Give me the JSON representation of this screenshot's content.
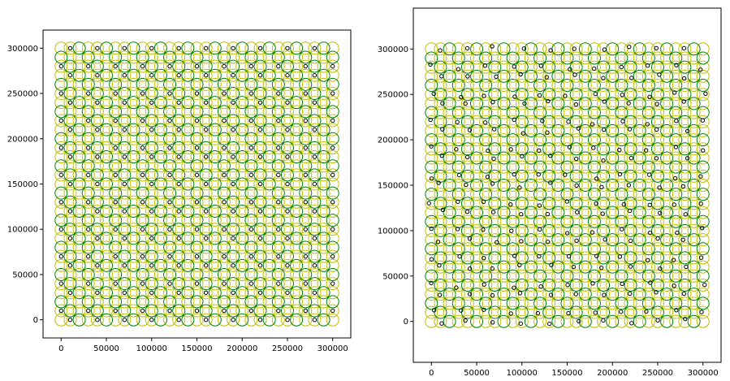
{
  "chart_data": [
    {
      "type": "scatter",
      "title": "",
      "xlabel": "",
      "ylabel": "",
      "xlim": [
        -20000,
        320000
      ],
      "ylim": [
        -20000,
        320000
      ],
      "xticks": [
        0,
        50000,
        100000,
        150000,
        200000,
        250000,
        300000
      ],
      "yticks": [
        0,
        50000,
        100000,
        150000,
        200000,
        250000,
        300000
      ],
      "xticklabels": [
        "0",
        "50000",
        "100000",
        "150000",
        "200000",
        "250000",
        "300000"
      ],
      "yticklabels": [
        "0",
        "50000",
        "100000",
        "150000",
        "200000",
        "250000",
        "300000"
      ],
      "grid": false,
      "lattice": {
        "spacing": 10000,
        "min": 0,
        "max": 300000,
        "yellow_sites": [
          [
            0,
            0
          ],
          [
            1,
            0
          ],
          [
            0,
            1
          ],
          [
            2,
            1
          ],
          [
            1,
            2
          ],
          [
            2,
            2
          ]
        ],
        "green_sites": [
          [
            0,
            2
          ],
          [
            2,
            0
          ],
          [
            1,
            1
          ]
        ],
        "black_sites": [
          [
            1,
            0
          ],
          [
            0,
            1
          ]
        ]
      },
      "series": [
        {
          "color": "#bfbf00",
          "marker": "large-circle"
        },
        {
          "color": "#008000",
          "marker": "large-circle"
        },
        {
          "color": "#000000",
          "marker": "small-circle",
          "jitter": 0
        }
      ]
    },
    {
      "type": "scatter",
      "title": "",
      "xlabel": "",
      "ylabel": "",
      "xlim": [
        -20000,
        320000
      ],
      "ylim": [
        -45000,
        345000
      ],
      "xticks": [
        0,
        50000,
        100000,
        150000,
        200000,
        250000,
        300000
      ],
      "yticks": [
        0,
        50000,
        100000,
        150000,
        200000,
        250000,
        300000
      ],
      "xticklabels": [
        "0",
        "50000",
        "100000",
        "150000",
        "200000",
        "250000",
        "300000"
      ],
      "yticklabels": [
        "0",
        "50000",
        "100000",
        "150000",
        "200000",
        "250000",
        "300000"
      ],
      "grid": false,
      "lattice": {
        "spacing": 10000,
        "min": 0,
        "max": 300000,
        "yellow_sites": [
          [
            0,
            0
          ],
          [
            1,
            0
          ],
          [
            0,
            1
          ],
          [
            2,
            1
          ],
          [
            1,
            2
          ],
          [
            2,
            2
          ]
        ],
        "green_sites": [
          [
            0,
            2
          ],
          [
            2,
            0
          ],
          [
            1,
            1
          ]
        ],
        "black_sites": [
          [
            1,
            0
          ],
          [
            0,
            1
          ]
        ]
      },
      "series": [
        {
          "color": "#bfbf00",
          "marker": "large-circle"
        },
        {
          "color": "#008000",
          "marker": "large-circle"
        },
        {
          "color": "#000000",
          "marker": "small-circle",
          "jitter": 3000
        }
      ]
    }
  ]
}
